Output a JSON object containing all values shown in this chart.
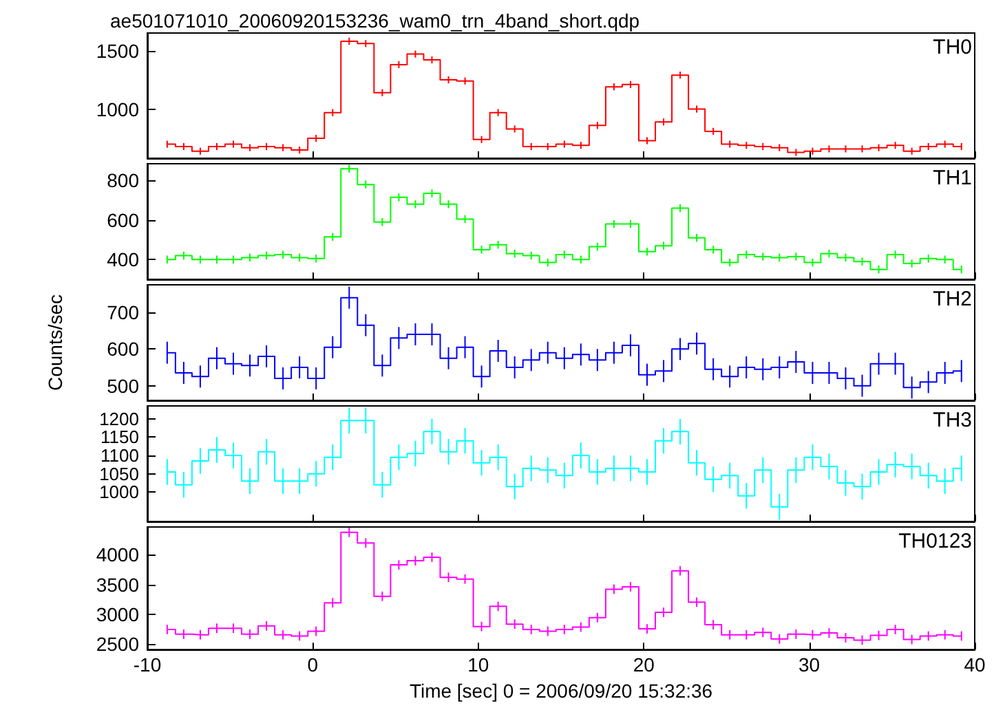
{
  "chart_data": [
    {
      "type": "step",
      "title": "ae501071010_20060920153236_wam0_trn_4band_short.qdp",
      "x": [
        -8.8,
        -7.8,
        -6.8,
        -5.8,
        -4.8,
        -3.8,
        -2.8,
        -1.8,
        -0.8,
        0.2,
        1.2,
        2.2,
        3.2,
        4.2,
        5.2,
        6.2,
        7.2,
        8.2,
        9.2,
        10.2,
        11.2,
        12.2,
        13.2,
        14.2,
        15.2,
        16.2,
        17.2,
        18.2,
        19.2,
        20.2,
        21.2,
        22.2,
        23.2,
        24.2,
        25.2,
        26.2,
        27.2,
        28.2,
        29.2,
        30.2,
        31.2,
        32.2,
        33.2,
        34.2,
        35.2,
        36.2,
        37.2,
        38.2,
        39.2
      ],
      "series": [
        {
          "name": "TH0",
          "color": "#ff0000",
          "values": [
            700,
            680,
            640,
            680,
            700,
            670,
            680,
            670,
            650,
            750,
            970,
            1580,
            1560,
            1140,
            1380,
            1470,
            1420,
            1250,
            1240,
            740,
            970,
            830,
            680,
            680,
            700,
            690,
            860,
            1190,
            1210,
            730,
            890,
            1290,
            1000,
            810,
            700,
            690,
            680,
            670,
            630,
            640,
            660,
            660,
            660,
            670,
            690,
            640,
            680,
            700,
            680
          ],
          "errors": [
            30,
            30,
            30,
            30,
            30,
            30,
            30,
            30,
            30,
            30,
            30,
            30,
            30,
            30,
            30,
            30,
            30,
            30,
            30,
            30,
            30,
            30,
            30,
            30,
            30,
            30,
            30,
            30,
            30,
            30,
            30,
            30,
            30,
            30,
            30,
            30,
            30,
            30,
            30,
            30,
            30,
            30,
            30,
            30,
            30,
            30,
            30,
            30,
            30
          ]
        }
      ],
      "xlim": [
        -10,
        40
      ],
      "xticks": [
        -10,
        0,
        10,
        20,
        30,
        40
      ],
      "ylim": [
        580,
        1650
      ],
      "yticks": [
        1000,
        1500
      ],
      "tick_labels": "y",
      "grid": false
    },
    {
      "type": "step",
      "x": [
        -8.8,
        -7.8,
        -6.8,
        -5.8,
        -4.8,
        -3.8,
        -2.8,
        -1.8,
        -0.8,
        0.2,
        1.2,
        2.2,
        3.2,
        4.2,
        5.2,
        6.2,
        7.2,
        8.2,
        9.2,
        10.2,
        11.2,
        12.2,
        13.2,
        14.2,
        15.2,
        16.2,
        17.2,
        18.2,
        19.2,
        20.2,
        21.2,
        22.2,
        23.2,
        24.2,
        25.2,
        26.2,
        27.2,
        28.2,
        29.2,
        30.2,
        31.2,
        32.2,
        33.2,
        34.2,
        35.2,
        36.2,
        37.2,
        38.2,
        39.2
      ],
      "series": [
        {
          "name": "TH1",
          "color": "#00ff00",
          "values": [
            400,
            420,
            400,
            400,
            400,
            410,
            420,
            425,
            410,
            405,
            515,
            860,
            780,
            590,
            715,
            680,
            735,
            680,
            605,
            450,
            475,
            430,
            420,
            385,
            425,
            400,
            465,
            580,
            580,
            440,
            470,
            660,
            510,
            450,
            385,
            425,
            415,
            410,
            415,
            385,
            430,
            410,
            390,
            350,
            425,
            380,
            405,
            400,
            350
          ],
          "errors": [
            20,
            20,
            20,
            20,
            20,
            20,
            20,
            20,
            20,
            20,
            20,
            20,
            20,
            20,
            20,
            20,
            20,
            20,
            20,
            20,
            20,
            20,
            20,
            20,
            20,
            20,
            20,
            20,
            20,
            20,
            20,
            20,
            20,
            20,
            20,
            20,
            20,
            20,
            20,
            20,
            20,
            20,
            20,
            20,
            20,
            20,
            20,
            20,
            20
          ]
        }
      ],
      "xlim": [
        -10,
        40
      ],
      "xticks": [
        -10,
        0,
        10,
        20,
        30,
        40
      ],
      "ylim": [
        300,
        885
      ],
      "yticks": [
        400,
        600,
        800
      ],
      "tick_labels": "y",
      "grid": false
    },
    {
      "type": "step",
      "ylabel": "Counts/sec",
      "x": [
        -8.8,
        -7.8,
        -6.8,
        -5.8,
        -4.8,
        -3.8,
        -2.8,
        -1.8,
        -0.8,
        0.2,
        1.2,
        2.2,
        3.2,
        4.2,
        5.2,
        6.2,
        7.2,
        8.2,
        9.2,
        10.2,
        11.2,
        12.2,
        13.2,
        14.2,
        15.2,
        16.2,
        17.2,
        18.2,
        19.2,
        20.2,
        21.2,
        22.2,
        23.2,
        24.2,
        25.2,
        26.2,
        27.2,
        28.2,
        29.2,
        30.2,
        31.2,
        32.2,
        33.2,
        34.2,
        35.2,
        36.2,
        37.2,
        38.2,
        39.2
      ],
      "series": [
        {
          "name": "TH2",
          "color": "#0000ff",
          "values": [
            590,
            535,
            525,
            575,
            560,
            555,
            580,
            520,
            550,
            520,
            605,
            740,
            665,
            555,
            630,
            640,
            640,
            575,
            605,
            525,
            595,
            550,
            570,
            590,
            575,
            585,
            570,
            590,
            610,
            530,
            540,
            600,
            615,
            545,
            525,
            550,
            545,
            550,
            565,
            535,
            535,
            520,
            500,
            560,
            560,
            495,
            510,
            535,
            540
          ],
          "errors": [
            30,
            30,
            30,
            30,
            30,
            30,
            30,
            30,
            30,
            30,
            30,
            30,
            30,
            30,
            30,
            30,
            30,
            30,
            30,
            30,
            30,
            30,
            30,
            30,
            30,
            30,
            30,
            30,
            30,
            30,
            30,
            30,
            30,
            30,
            30,
            30,
            30,
            30,
            30,
            30,
            30,
            30,
            30,
            30,
            30,
            30,
            30,
            30,
            30
          ]
        }
      ],
      "xlim": [
        -10,
        40
      ],
      "xticks": [
        -10,
        0,
        10,
        20,
        30,
        40
      ],
      "ylim": [
        460,
        775
      ],
      "yticks": [
        500,
        600,
        700
      ],
      "tick_labels": "y",
      "grid": false
    },
    {
      "type": "step",
      "x": [
        -8.8,
        -7.8,
        -6.8,
        -5.8,
        -4.8,
        -3.8,
        -2.8,
        -1.8,
        -0.8,
        0.2,
        1.2,
        2.2,
        3.2,
        4.2,
        5.2,
        6.2,
        7.2,
        8.2,
        9.2,
        10.2,
        11.2,
        12.2,
        13.2,
        14.2,
        15.2,
        16.2,
        17.2,
        18.2,
        19.2,
        20.2,
        21.2,
        22.2,
        23.2,
        24.2,
        25.2,
        26.2,
        27.2,
        28.2,
        29.2,
        30.2,
        31.2,
        32.2,
        33.2,
        34.2,
        35.2,
        36.2,
        37.2,
        38.2,
        39.2
      ],
      "series": [
        {
          "name": "TH3",
          "color": "#00ffff",
          "values": [
            1055,
            1020,
            1085,
            1115,
            1100,
            1030,
            1110,
            1030,
            1030,
            1050,
            1095,
            1195,
            1195,
            1020,
            1095,
            1105,
            1165,
            1110,
            1140,
            1080,
            1095,
            1015,
            1065,
            1060,
            1045,
            1100,
            1055,
            1065,
            1065,
            1055,
            1140,
            1165,
            1080,
            1035,
            1045,
            990,
            1060,
            960,
            1060,
            1095,
            1070,
            1025,
            1015,
            1055,
            1075,
            1070,
            1045,
            1030,
            1065
          ],
          "errors": [
            35,
            35,
            35,
            35,
            35,
            35,
            35,
            35,
            35,
            35,
            35,
            35,
            35,
            35,
            35,
            35,
            35,
            35,
            35,
            35,
            35,
            35,
            35,
            35,
            35,
            35,
            35,
            35,
            35,
            35,
            35,
            35,
            35,
            35,
            35,
            35,
            35,
            35,
            35,
            35,
            35,
            35,
            35,
            35,
            35,
            35,
            35,
            35,
            35
          ]
        }
      ],
      "xlim": [
        -10,
        40
      ],
      "xticks": [
        -10,
        0,
        10,
        20,
        30,
        40
      ],
      "ylim": [
        920,
        1235
      ],
      "yticks": [
        1000,
        1050,
        1100,
        1150,
        1200
      ],
      "tick_labels": "y",
      "grid": false
    },
    {
      "type": "step",
      "xlabel": "Time [sec] 0 = 2006/09/20 15:32:36",
      "x": [
        -8.8,
        -7.8,
        -6.8,
        -5.8,
        -4.8,
        -3.8,
        -2.8,
        -1.8,
        -0.8,
        0.2,
        1.2,
        2.2,
        3.2,
        4.2,
        5.2,
        6.2,
        7.2,
        8.2,
        9.2,
        10.2,
        11.2,
        12.2,
        13.2,
        14.2,
        15.2,
        16.2,
        17.2,
        18.2,
        19.2,
        20.2,
        21.2,
        22.2,
        23.2,
        24.2,
        25.2,
        26.2,
        27.2,
        28.2,
        29.2,
        30.2,
        31.2,
        32.2,
        33.2,
        34.2,
        35.2,
        36.2,
        37.2,
        38.2,
        39.2
      ],
      "series": [
        {
          "name": "TH0123",
          "color": "#ff00ff",
          "values": [
            2740,
            2660,
            2650,
            2760,
            2760,
            2660,
            2800,
            2650,
            2630,
            2710,
            3190,
            4380,
            4200,
            3300,
            3830,
            3900,
            3960,
            3620,
            3590,
            2790,
            3130,
            2830,
            2740,
            2710,
            2740,
            2780,
            2940,
            3420,
            3460,
            2750,
            3030,
            3730,
            3200,
            2820,
            2650,
            2650,
            2690,
            2580,
            2660,
            2650,
            2680,
            2600,
            2560,
            2640,
            2740,
            2570,
            2630,
            2650,
            2630
          ],
          "errors": [
            80,
            80,
            80,
            80,
            80,
            80,
            80,
            80,
            80,
            80,
            80,
            80,
            80,
            80,
            80,
            80,
            80,
            80,
            80,
            80,
            80,
            80,
            80,
            80,
            80,
            80,
            80,
            80,
            80,
            80,
            80,
            80,
            80,
            80,
            80,
            80,
            80,
            80,
            80,
            80,
            80,
            80,
            80,
            80,
            80,
            80,
            80,
            80,
            80
          ]
        }
      ],
      "xlim": [
        -10,
        40
      ],
      "xticks": [
        -10,
        0,
        10,
        20,
        30,
        40
      ],
      "ylim": [
        2400,
        4470
      ],
      "yticks": [
        2500,
        3000,
        3500,
        4000
      ],
      "grid": false
    }
  ]
}
